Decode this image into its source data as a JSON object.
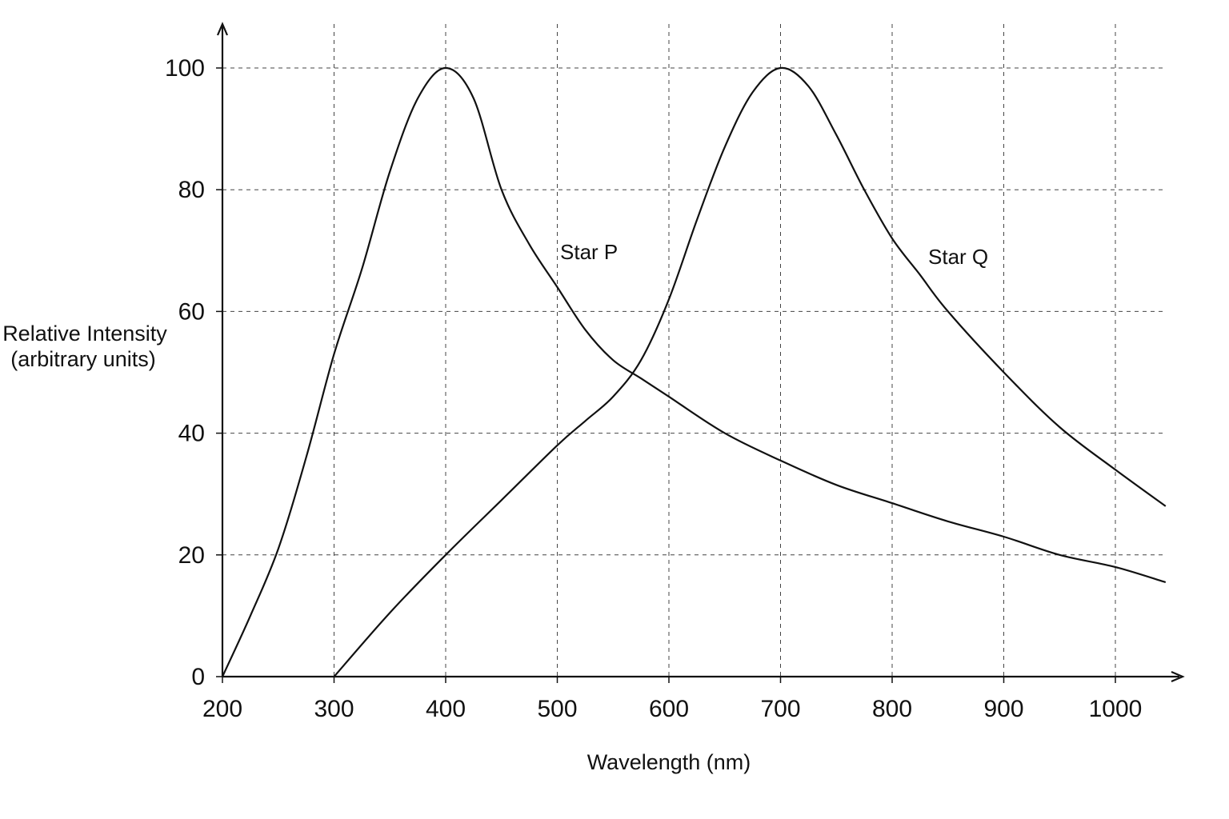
{
  "chart_data": {
    "type": "line",
    "xlabel": "Wavelength (nm)",
    "ylabel_lines": [
      "Relative Intensity",
      "(arbitrary units)"
    ],
    "xlim": [
      200,
      1050
    ],
    "ylim": [
      0,
      100
    ],
    "x_ticks": [
      200,
      300,
      400,
      500,
      600,
      700,
      800,
      900,
      1000
    ],
    "y_ticks": [
      0,
      20,
      40,
      60,
      80,
      100
    ],
    "grid": true,
    "colors": {
      "line": "#111111",
      "grid": "#444444"
    },
    "series": [
      {
        "name": "Star P",
        "x": [
          200,
          225,
          250,
          275,
          300,
          325,
          350,
          375,
          400,
          425,
          450,
          475,
          500,
          525,
          550,
          575,
          600,
          650,
          700,
          750,
          800,
          850,
          900,
          950,
          1000,
          1045
        ],
        "y": [
          0,
          10,
          21,
          36,
          53,
          67,
          83,
          95,
          100,
          95,
          80,
          71,
          64,
          57,
          52,
          49,
          46,
          40,
          35.5,
          31.5,
          28.5,
          25.5,
          23,
          20,
          18,
          15.5
        ]
      },
      {
        "name": "Star Q",
        "x": [
          300,
          350,
          400,
          450,
          500,
          525,
          550,
          575,
          600,
          625,
          650,
          675,
          700,
          725,
          750,
          775,
          800,
          825,
          850,
          900,
          950,
          1000,
          1045
        ],
        "y": [
          0,
          10.5,
          20,
          29,
          38,
          42,
          46,
          52,
          62,
          75,
          87,
          96,
          100,
          97,
          89,
          80,
          72,
          66,
          60,
          50,
          41,
          34,
          28
        ]
      }
    ]
  }
}
